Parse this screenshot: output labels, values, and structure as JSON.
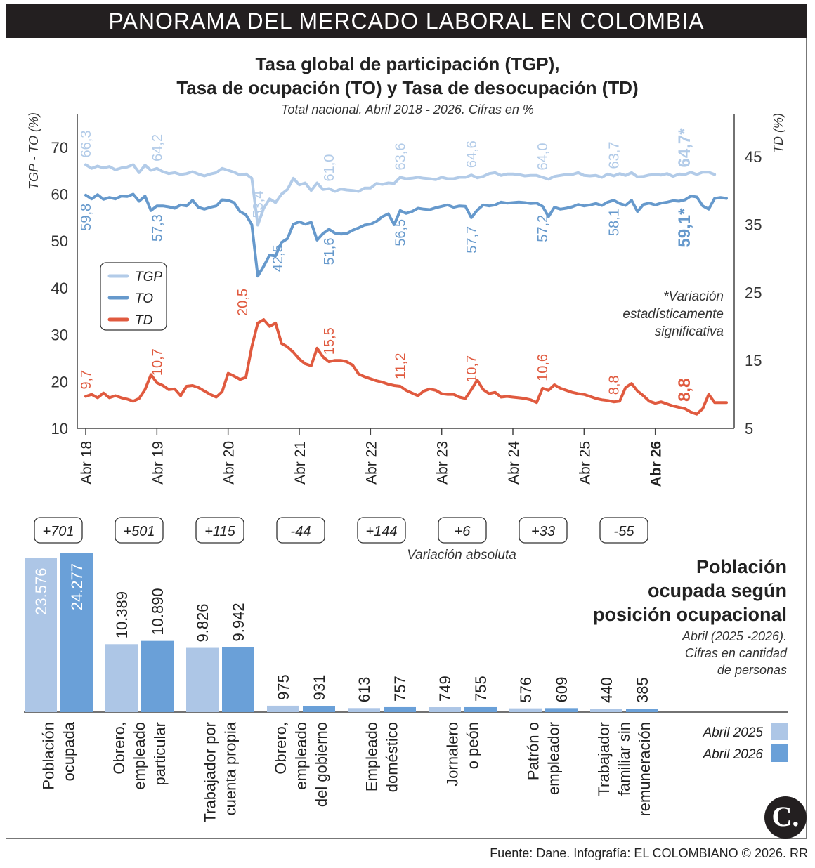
{
  "header": {
    "banner": "PANORAMA DEL MERCADO LABORAL EN COLOMBIA"
  },
  "footer": {
    "source": "Fuente: Dane. Infografía: EL COLOMBIANO © 2026. RR",
    "logo": "C."
  },
  "chart_data": [
    {
      "type": "line",
      "title": "Tasa global de participación (TGP),",
      "title2": "Tasa de ocupación (TO) y Tasa de desocupación (TD)",
      "subtitle": "Total nacional. Abril 2018 - 2026. Cifras en %",
      "ylabel_left": "TGP - TO (%)",
      "ylabel_right": "TD (%)",
      "ylim_left": [
        10,
        76
      ],
      "yticks_left": [
        10,
        20,
        30,
        40,
        50,
        60,
        70
      ],
      "ylim_right": [
        5,
        50.6
      ],
      "yticks_right": [
        5,
        15,
        25,
        35,
        45
      ],
      "x_ticks": [
        "Abr 18",
        "Abr 19",
        "Abr 20",
        "Abr 21",
        "Abr 22",
        "Abr 23",
        "Abr 24",
        "Abr 25",
        "Abr 26"
      ],
      "note": [
        "*Variación",
        "estadísticamente",
        "significativa"
      ],
      "legend": [
        "TGP",
        "TO",
        "TD"
      ],
      "colors": {
        "TGP": "#b2cbe8",
        "TO": "#6699cc",
        "TD": "#e05a3f"
      },
      "series": [
        {
          "name": "TGP",
          "axis": "left",
          "values": [
            66.3,
            65.5,
            66.0,
            65.6,
            65.9,
            65.2,
            65.6,
            65.8,
            66.3,
            64.6,
            66.2,
            65.1,
            65.5,
            64.8,
            64.4,
            64.6,
            64.2,
            64.4,
            64.8,
            64.3,
            63.9,
            64.3,
            64.6,
            65.5,
            65.1,
            64.7,
            64.1,
            64.3,
            63.4,
            53.4,
            57.0,
            59.0,
            58.2,
            60.0,
            61.0,
            63.4,
            62.0,
            62.4,
            60.8,
            62.4,
            61.0,
            61.2,
            60.6,
            61.1,
            60.9,
            60.8,
            60.6,
            61.3,
            61.3,
            62.3,
            62.1,
            62.4,
            62.3,
            63.6,
            63.3,
            63.4,
            63.6,
            63.4,
            63.3,
            63.1,
            63.6,
            63.3,
            63.3,
            63.6,
            63.6,
            64.1,
            63.5,
            63.8,
            64.4,
            64.6,
            64.0,
            64.3,
            64.3,
            64.2,
            63.9,
            64.0,
            64.0,
            63.6,
            63.2,
            63.8,
            64.0,
            64.2,
            64.2,
            64.6,
            64.0,
            63.9,
            64.0,
            63.6,
            64.3,
            63.9,
            64.4,
            64.0,
            64.6,
            63.7,
            63.8,
            64.1,
            64.2,
            64.1,
            64.4,
            63.8,
            64.3,
            64.2,
            64.7,
            64.2,
            64.7,
            64.7,
            64.2
          ]
        },
        {
          "name": "TO",
          "axis": "left",
          "values": [
            59.8,
            59.0,
            59.9,
            58.9,
            59.3,
            59.0,
            59.6,
            59.5,
            60.0,
            58.5,
            59.6,
            56.5,
            57.5,
            57.5,
            57.3,
            57.0,
            57.7,
            57.5,
            58.7,
            57.2,
            56.8,
            57.2,
            57.5,
            58.8,
            58.7,
            58.2,
            56.3,
            55.6,
            53.5,
            42.5,
            44.6,
            47.0,
            46.8,
            49.7,
            50.5,
            53.6,
            54.1,
            53.6,
            54.0,
            50.2,
            51.6,
            52.5,
            51.7,
            51.5,
            51.6,
            52.3,
            52.8,
            53.4,
            53.6,
            54.2,
            55.2,
            55.8,
            53.5,
            56.5,
            55.9,
            56.3,
            57.0,
            56.8,
            56.7,
            57.1,
            57.4,
            57.7,
            57.2,
            57.5,
            57.4,
            55.0,
            56.6,
            57.7,
            57.5,
            57.7,
            58.3,
            58.1,
            58.2,
            58.3,
            58.2,
            58.0,
            58.1,
            57.4,
            55.2,
            57.2,
            56.8,
            57.0,
            57.3,
            57.8,
            57.5,
            57.7,
            58.0,
            57.6,
            58.3,
            58.7,
            58.0,
            57.6,
            58.7,
            56.3,
            57.8,
            58.1,
            57.7,
            58.1,
            58.3,
            58.6,
            58.5,
            58.8,
            59.6,
            59.4,
            57.5,
            56.8,
            59.1,
            59.3,
            59.1
          ]
        },
        {
          "name": "TD",
          "axis": "right",
          "values": [
            9.7,
            10.0,
            9.5,
            10.2,
            9.5,
            9.8,
            9.5,
            9.3,
            9.0,
            9.4,
            10.7,
            12.9,
            11.7,
            11.3,
            10.7,
            10.8,
            9.8,
            11.2,
            11.3,
            11.0,
            10.5,
            10.0,
            9.6,
            10.4,
            13.1,
            12.7,
            12.2,
            12.5,
            17.0,
            20.5,
            21.0,
            20.0,
            20.5,
            17.5,
            17.0,
            16.2,
            15.2,
            14.5,
            14.2,
            16.8,
            15.5,
            14.8,
            15.0,
            15.0,
            14.8,
            14.3,
            13.0,
            12.6,
            12.3,
            12.0,
            11.8,
            11.5,
            11.3,
            11.2,
            10.6,
            10.2,
            9.8,
            10.5,
            10.8,
            10.6,
            10.1,
            10.0,
            10.0,
            9.6,
            9.4,
            10.7,
            12.1,
            10.7,
            10.1,
            10.3,
            9.6,
            9.7,
            9.6,
            9.5,
            9.4,
            9.2,
            8.8,
            10.9,
            10.6,
            11.4,
            10.9,
            10.6,
            10.3,
            10.1,
            10.0,
            9.7,
            9.4,
            9.2,
            9.1,
            8.9,
            9.0,
            11.0,
            11.6,
            10.5,
            9.8,
            9.0,
            8.7,
            8.9,
            8.6,
            8.3,
            8.1,
            7.9,
            7.4,
            7.1,
            7.9,
            10.0,
            8.8,
            8.8,
            8.8
          ]
        }
      ],
      "annotations": {
        "TGP": [
          {
            "i": 0,
            "label": "66,3"
          },
          {
            "i": 12,
            "label": "64,2"
          },
          {
            "i": 29,
            "label": "53,4"
          },
          {
            "i": 41,
            "label": "61,0"
          },
          {
            "i": 53,
            "label": "63,6"
          },
          {
            "i": 65,
            "label": "64,6"
          },
          {
            "i": 77,
            "label": "64,0"
          },
          {
            "i": 89,
            "label": "63,7"
          },
          {
            "i": 101,
            "label": "64,7*"
          }
        ],
        "TO": [
          {
            "i": 0,
            "label": "59,8"
          },
          {
            "i": 12,
            "label": "57,3"
          },
          {
            "i": 29,
            "label": "42,5"
          },
          {
            "i": 41,
            "label": "51,6"
          },
          {
            "i": 53,
            "label": "56,5"
          },
          {
            "i": 65,
            "label": "57,7"
          },
          {
            "i": 77,
            "label": "57,2"
          },
          {
            "i": 89,
            "label": "58,1"
          },
          {
            "i": 101,
            "label": "59,1*"
          }
        ],
        "TD": [
          {
            "i": 0,
            "label": "9,7"
          },
          {
            "i": 12,
            "label": "10,7"
          },
          {
            "i": 29,
            "label": "20,5"
          },
          {
            "i": 41,
            "label": "15,5"
          },
          {
            "i": 53,
            "label": "11,2"
          },
          {
            "i": 65,
            "label": "10,7"
          },
          {
            "i": 77,
            "label": "10,6"
          },
          {
            "i": 89,
            "label": "8,8"
          },
          {
            "i": 101,
            "label": "8,8"
          }
        ]
      }
    },
    {
      "type": "bar",
      "title": [
        "Población",
        "ocupada según",
        "posición ocupacional"
      ],
      "note": [
        "Abril (2025 -2026).",
        "Cifras en cantidad",
        "de personas"
      ],
      "variation_label": "Variación absoluta",
      "categories": [
        [
          "Población",
          "ocupada"
        ],
        [
          "Obrero,",
          "empleado",
          "particular"
        ],
        [
          "Trabajador por",
          "cuenta propia"
        ],
        [
          "Obrero,",
          "empleado",
          "del gobierno"
        ],
        [
          "Empleado",
          "doméstico"
        ],
        [
          "Jornalero",
          "o peón"
        ],
        [
          "Patrón o",
          "empleador"
        ],
        [
          "Trabajador",
          "familiar sin",
          "remuneración"
        ]
      ],
      "variations": [
        "+701",
        "+501",
        "+115",
        "-44",
        "+144",
        "+6",
        "+33",
        "-55"
      ],
      "series": [
        {
          "name": "Abril 2025",
          "color": "#adc6e6",
          "values": [
            23576,
            10389,
            9826,
            975,
            613,
            749,
            576,
            440
          ],
          "labels": [
            "23.576",
            "10.389",
            "9.826",
            "975",
            "613",
            "749",
            "576",
            "440"
          ]
        },
        {
          "name": "Abril 2026",
          "color": "#6aa0d8",
          "values": [
            24277,
            10890,
            9942,
            931,
            757,
            755,
            609,
            385
          ],
          "labels": [
            "24.277",
            "10.890",
            "9.942",
            "931",
            "757",
            "755",
            "609",
            "385"
          ]
        }
      ]
    }
  ]
}
